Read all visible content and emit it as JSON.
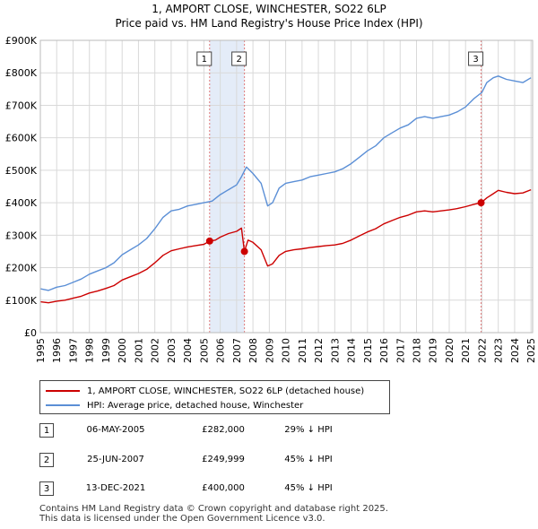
{
  "title_line1": "1, AMPORT CLOSE, WINCHESTER, SO22 6LP",
  "title_line2": "Price paid vs. HM Land Registry's House Price Index (HPI)",
  "colors": {
    "property": "#cc0000",
    "hpi": "#5b8fd6",
    "shade": "#e4ecf8",
    "vline": "#e07a7a",
    "grid": "#d9d9d9"
  },
  "legend": {
    "property_label": "1, AMPORT CLOSE, WINCHESTER, SO22 6LP (detached house)",
    "hpi_label": "HPI: Average price, detached house, Winchester"
  },
  "sales": [
    {
      "num": "1",
      "date": "06-MAY-2005",
      "price": "£282,000",
      "hpi": "29% ↓ HPI"
    },
    {
      "num": "2",
      "date": "25-JUN-2007",
      "price": "£249,999",
      "hpi": "45% ↓ HPI"
    },
    {
      "num": "3",
      "date": "13-DEC-2021",
      "price": "£400,000",
      "hpi": "45% ↓ HPI"
    }
  ],
  "footer_line1": "Contains HM Land Registry data © Crown copyright and database right 2025.",
  "footer_line2": "This data is licensed under the Open Government Licence v3.0.",
  "chart_data": {
    "type": "line",
    "xlim": [
      1995,
      2025.1
    ],
    "ylim": [
      0,
      900000
    ],
    "y_ticks": [
      0,
      100000,
      200000,
      300000,
      400000,
      500000,
      600000,
      700000,
      800000,
      900000
    ],
    "y_tick_labels": [
      "£0",
      "£100K",
      "£200K",
      "£300K",
      "£400K",
      "£500K",
      "£600K",
      "£700K",
      "£800K",
      "£900K"
    ],
    "x_ticks": [
      1995,
      1996,
      1997,
      1998,
      1999,
      2000,
      2001,
      2002,
      2003,
      2004,
      2005,
      2006,
      2007,
      2008,
      2009,
      2010,
      2011,
      2012,
      2013,
      2014,
      2015,
      2016,
      2017,
      2018,
      2019,
      2020,
      2021,
      2022,
      2023,
      2024,
      2025
    ],
    "shaded_spans": [
      [
        2005.35,
        2007.48
      ]
    ],
    "sale_markers": [
      {
        "label": "1",
        "x": 2005.35,
        "y": 282000
      },
      {
        "label": "2",
        "x": 2007.48,
        "y": 249999
      },
      {
        "label": "3",
        "x": 2021.95,
        "y": 400000
      }
    ],
    "series": [
      {
        "name": "HPI: Average price, detached house, Winchester",
        "x": [
          1995,
          1995.5,
          1996,
          1996.5,
          1997,
          1997.5,
          1998,
          1998.5,
          1999,
          1999.5,
          2000,
          2000.5,
          2001,
          2001.5,
          2002,
          2002.5,
          2003,
          2003.5,
          2004,
          2004.5,
          2005,
          2005.5,
          2006,
          2006.5,
          2007,
          2007.3,
          2007.6,
          2008,
          2008.5,
          2008.9,
          2009.2,
          2009.6,
          2010,
          2010.5,
          2011,
          2011.5,
          2012,
          2012.5,
          2013,
          2013.5,
          2014,
          2014.5,
          2015,
          2015.5,
          2016,
          2016.5,
          2017,
          2017.5,
          2018,
          2018.5,
          2019,
          2019.5,
          2020,
          2020.5,
          2021,
          2021.5,
          2022,
          2022.3,
          2022.7,
          2023,
          2023.5,
          2024,
          2024.5,
          2025
        ],
        "values": [
          135000,
          130000,
          140000,
          145000,
          155000,
          165000,
          180000,
          190000,
          200000,
          215000,
          240000,
          255000,
          270000,
          290000,
          320000,
          355000,
          375000,
          380000,
          390000,
          395000,
          400000,
          405000,
          425000,
          440000,
          455000,
          480000,
          510000,
          490000,
          460000,
          390000,
          400000,
          445000,
          460000,
          465000,
          470000,
          480000,
          485000,
          490000,
          495000,
          505000,
          520000,
          540000,
          560000,
          575000,
          600000,
          615000,
          630000,
          640000,
          660000,
          665000,
          660000,
          665000,
          670000,
          680000,
          695000,
          720000,
          740000,
          770000,
          785000,
          790000,
          780000,
          775000,
          770000,
          785000
        ]
      },
      {
        "name": "1, AMPORT CLOSE, WINCHESTER, SO22 6LP (detached house)",
        "x": [
          1995,
          1995.5,
          1996,
          1996.5,
          1997,
          1997.5,
          1998,
          1998.5,
          1999,
          1999.5,
          2000,
          2000.5,
          2001,
          2001.5,
          2002,
          2002.5,
          2003,
          2003.5,
          2004,
          2004.5,
          2005,
          2005.35,
          2005.7,
          2006,
          2006.5,
          2007,
          2007.3,
          2007.48,
          2007.7,
          2008,
          2008.5,
          2008.9,
          2009.2,
          2009.6,
          2010,
          2010.5,
          2011,
          2011.5,
          2012,
          2012.5,
          2013,
          2013.5,
          2014,
          2014.5,
          2015,
          2015.5,
          2016,
          2016.5,
          2017,
          2017.5,
          2018,
          2018.5,
          2019,
          2019.5,
          2020,
          2020.5,
          2021,
          2021.5,
          2021.95,
          2022.3,
          2022.7,
          2023,
          2023.5,
          2024,
          2024.5,
          2025
        ],
        "values": [
          95000,
          92000,
          97000,
          100000,
          106000,
          112000,
          122000,
          128000,
          136000,
          145000,
          162000,
          172000,
          182000,
          195000,
          215000,
          238000,
          252000,
          258000,
          264000,
          268000,
          272000,
          282000,
          285000,
          294000,
          305000,
          312000,
          322000,
          249999,
          285000,
          278000,
          255000,
          205000,
          212000,
          238000,
          250000,
          255000,
          258000,
          262000,
          265000,
          268000,
          270000,
          275000,
          285000,
          298000,
          310000,
          320000,
          335000,
          345000,
          355000,
          362000,
          372000,
          375000,
          372000,
          375000,
          378000,
          382000,
          388000,
          395000,
          400000,
          415000,
          428000,
          438000,
          432000,
          428000,
          430000,
          440000
        ]
      }
    ]
  }
}
